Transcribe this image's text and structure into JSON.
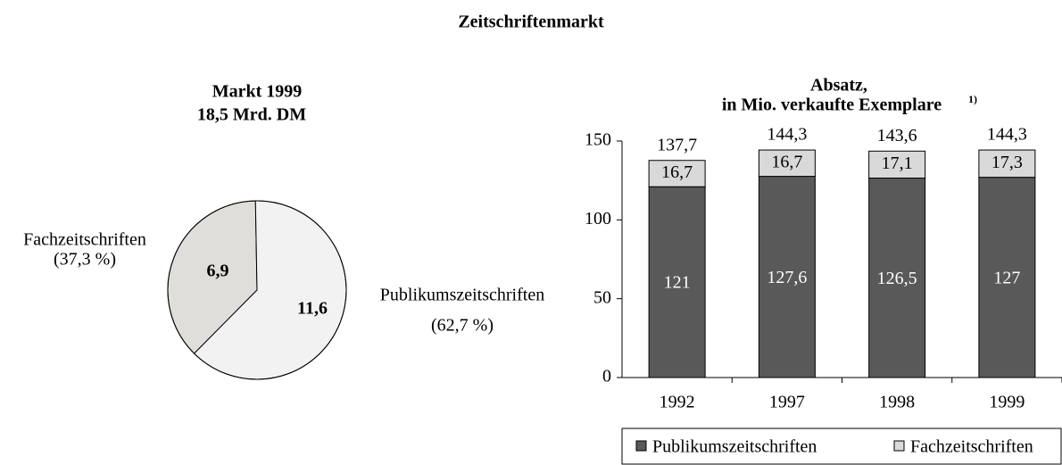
{
  "title": "Zeitschriftenmarkt",
  "chart_data": [
    {
      "type": "pie",
      "title": "Markt 1999",
      "subtitle": "18,5 Mrd. DM",
      "categories": [
        "Fachzeitschriften",
        "Publikumszeitschriften"
      ],
      "values": [
        6.9,
        11.6
      ],
      "value_labels": [
        "6,9",
        "11,6"
      ],
      "percent_labels": [
        "(37,3 %)",
        "(62,7 %)"
      ],
      "colors": [
        "#e0dedb",
        "#f2f2f2"
      ]
    },
    {
      "type": "bar",
      "stacked": true,
      "title": "Absatz,",
      "subtitle": "in Mio. verkaufte Exemplare",
      "footnote_mark": "1)",
      "categories": [
        "1992",
        "1997",
        "1998",
        "1999"
      ],
      "series": [
        {
          "name": "Publikumszeitschriften",
          "color": "#595959",
          "values": [
            121,
            127.6,
            126.5,
            127
          ],
          "value_labels": [
            "121",
            "127,6",
            "126,5",
            "127"
          ]
        },
        {
          "name": "Fachzeitschriften",
          "color": "#d9d9d9",
          "values": [
            16.7,
            16.7,
            17.1,
            17.3
          ],
          "value_labels": [
            "16,7",
            "16,7",
            "17,1",
            "17,3"
          ]
        }
      ],
      "totals": [
        137.7,
        144.3,
        143.6,
        144.3
      ],
      "total_labels": [
        "137,7",
        "144,3",
        "143,6",
        "144,3"
      ],
      "ylim": [
        0,
        150
      ],
      "yticks": [
        0,
        50,
        100,
        150
      ],
      "legend": "bottom"
    }
  ]
}
